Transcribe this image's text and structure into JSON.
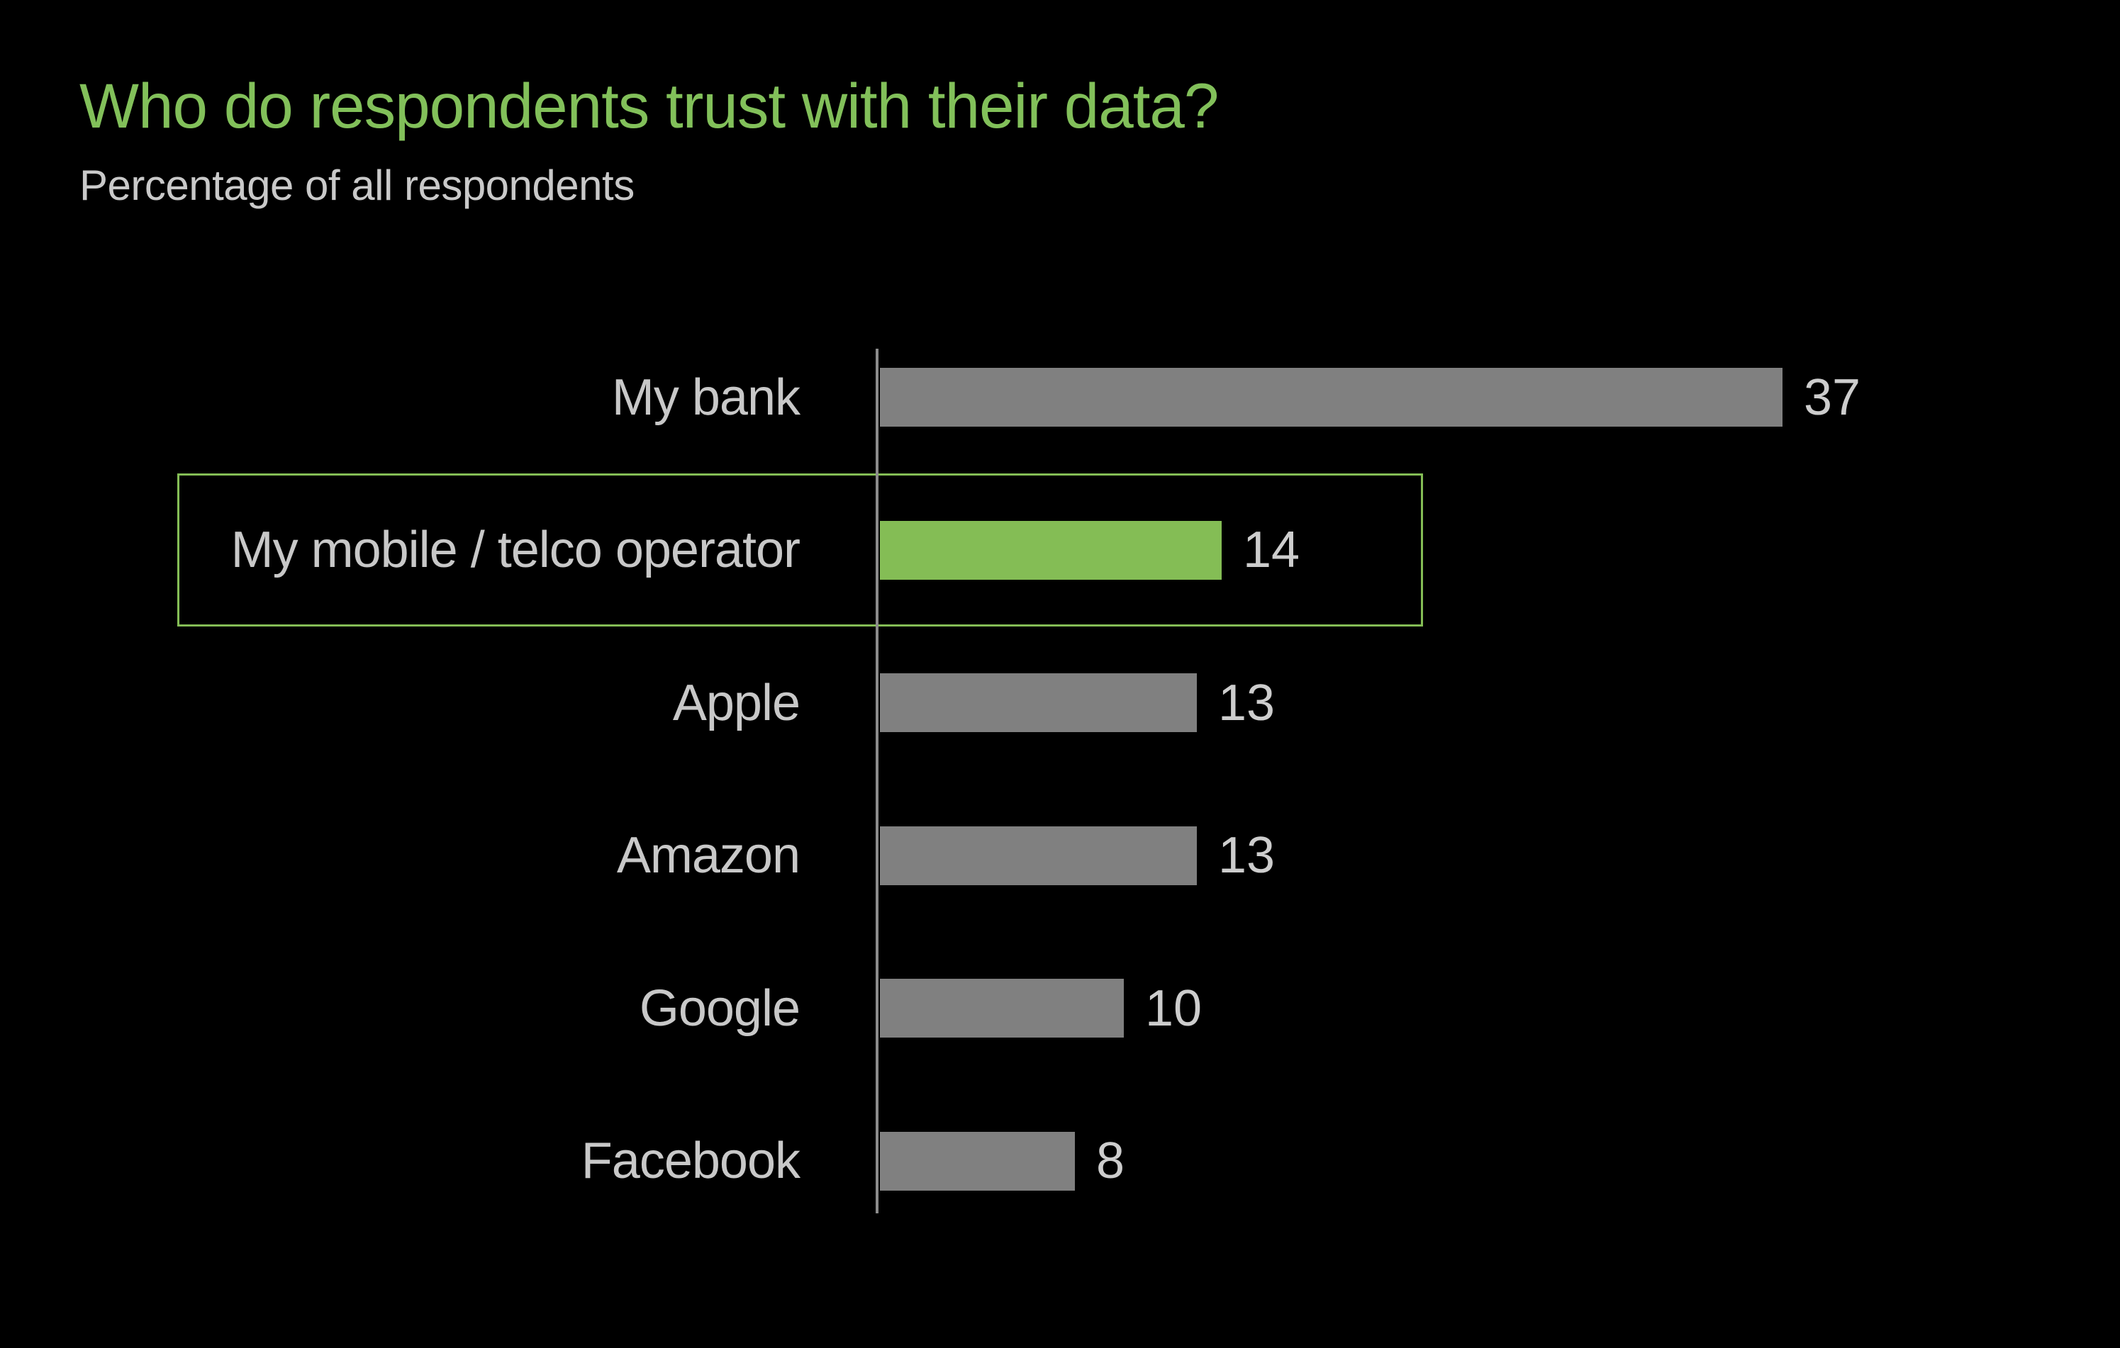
{
  "page": {
    "background": "#000000"
  },
  "header": {
    "title": "Who do respondents trust with their data?",
    "subtitle": "Percentage of all respondents",
    "title_color": "#82c05a",
    "subtitle_color": "#c9c9c9"
  },
  "chart_data": {
    "type": "bar",
    "orientation": "horizontal",
    "title": "Who do respondents trust with their data?",
    "subtitle": "Percentage of all respondents",
    "categories": [
      "My bank",
      "My mobile / telco operator",
      "Apple",
      "Amazon",
      "Google",
      "Facebook"
    ],
    "values": [
      37,
      14,
      13,
      13,
      10,
      8
    ],
    "value_unit": "percentage of all respondents",
    "highlighted_index": 1,
    "highlighted_category": "My mobile / telco operator",
    "bar_color": "#808080",
    "highlight_bar_color": "#84bd55",
    "highlight_box_border_color": "#84bd55",
    "axis_color": "#8c8c8c",
    "category_label_color": "#c8c8c8",
    "value_label_color": "#cdcdcd",
    "xlim": [
      0,
      40
    ],
    "grid": false,
    "legend": false,
    "value_labels_shown": true
  }
}
